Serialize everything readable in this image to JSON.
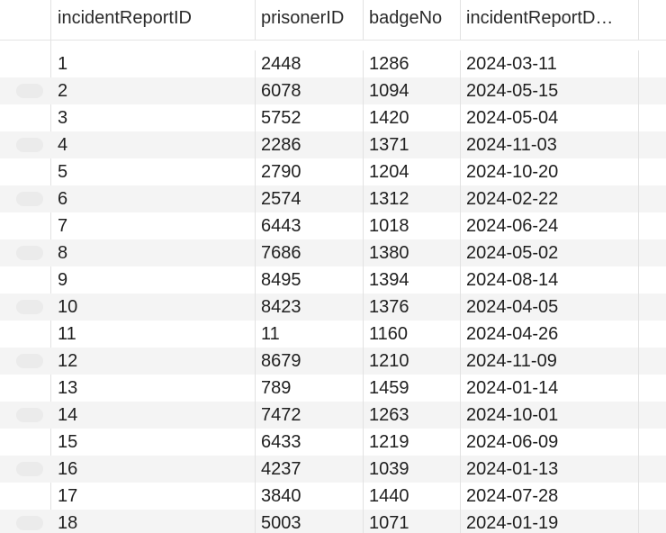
{
  "table": {
    "columns": [
      "incidentReportID",
      "prisonerID",
      "badgeNo",
      "incidentReportD…"
    ],
    "rows": [
      [
        "1",
        "2448",
        "1286",
        "2024-03-11"
      ],
      [
        "2",
        "6078",
        "1094",
        "2024-05-15"
      ],
      [
        "3",
        "5752",
        "1420",
        "2024-05-04"
      ],
      [
        "4",
        "2286",
        "1371",
        "2024-11-03"
      ],
      [
        "5",
        "2790",
        "1204",
        "2024-10-20"
      ],
      [
        "6",
        "2574",
        "1312",
        "2024-02-22"
      ],
      [
        "7",
        "6443",
        "1018",
        "2024-06-24"
      ],
      [
        "8",
        "7686",
        "1380",
        "2024-05-02"
      ],
      [
        "9",
        "8495",
        "1394",
        "2024-08-14"
      ],
      [
        "10",
        "8423",
        "1376",
        "2024-04-05"
      ],
      [
        "11",
        "11",
        "1160",
        "2024-04-26"
      ],
      [
        "12",
        "8679",
        "1210",
        "2024-11-09"
      ],
      [
        "13",
        "789",
        "1459",
        "2024-01-14"
      ],
      [
        "14",
        "7472",
        "1263",
        "2024-10-01"
      ],
      [
        "15",
        "6433",
        "1219",
        "2024-06-09"
      ],
      [
        "16",
        "4237",
        "1039",
        "2024-01-13"
      ],
      [
        "17",
        "3840",
        "1440",
        "2024-07-28"
      ],
      [
        "18",
        "5003",
        "1071",
        "2024-01-19"
      ]
    ]
  }
}
